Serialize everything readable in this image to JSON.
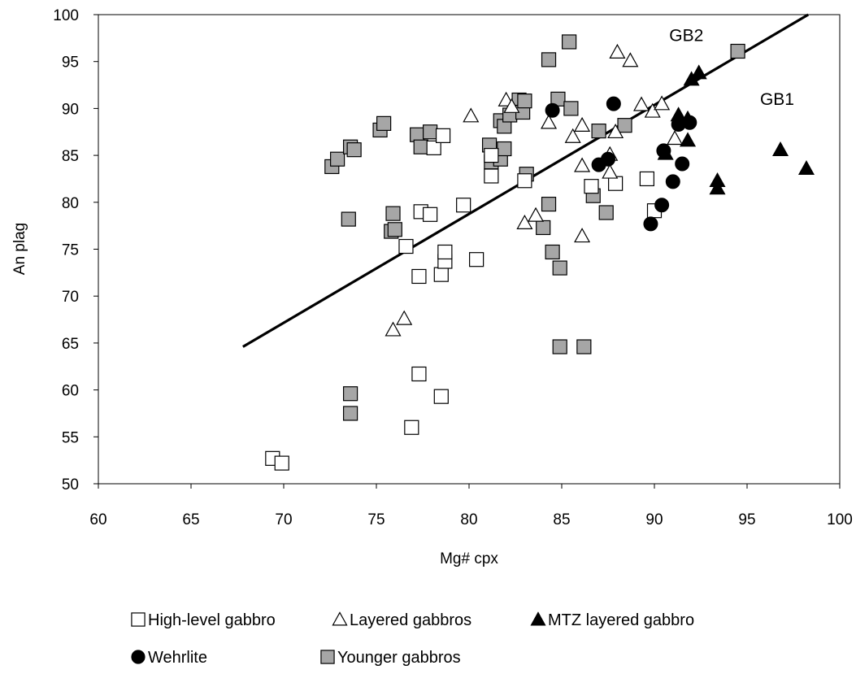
{
  "chart_data": {
    "type": "scatter",
    "xlabel": "Mg# cpx",
    "ylabel": "An plag",
    "xlim": [
      60,
      100
    ],
    "ylim": [
      50,
      100
    ],
    "xticks": [
      "60",
      "65",
      "70",
      "75",
      "80",
      "85",
      "90",
      "95",
      "100"
    ],
    "yticks": [
      "50",
      "55",
      "60",
      "65",
      "70",
      "75",
      "80",
      "85",
      "90",
      "95",
      "100"
    ],
    "grid": false,
    "legend_position": "bottom",
    "annotations": [
      {
        "text": "GB2",
        "x": 90.8,
        "y": 97.2
      },
      {
        "text": "GB1",
        "x": 95.7,
        "y": 90.4
      }
    ],
    "trend_line": {
      "x": [
        67.8,
        98.3
      ],
      "y": [
        64.6,
        100
      ]
    },
    "series": [
      {
        "name": "High-level gabbro",
        "marker": "square",
        "fill": "#ffffff",
        "stroke": "#000000",
        "points": [
          [
            69.4,
            52.7
          ],
          [
            69.9,
            52.2
          ],
          [
            76.9,
            56.0
          ],
          [
            77.3,
            61.7
          ],
          [
            78.5,
            59.3
          ],
          [
            76.6,
            75.3
          ],
          [
            77.3,
            72.1
          ],
          [
            78.5,
            72.3
          ],
          [
            78.7,
            73.7
          ],
          [
            78.7,
            74.7
          ],
          [
            77.4,
            79.0
          ],
          [
            77.9,
            78.7
          ],
          [
            79.7,
            79.7
          ],
          [
            80.4,
            73.9
          ],
          [
            81.2,
            82.8
          ],
          [
            81.2,
            85.0
          ],
          [
            78.1,
            85.8
          ],
          [
            78.6,
            87.1
          ],
          [
            83.0,
            82.3
          ],
          [
            86.6,
            81.7
          ],
          [
            87.9,
            82.0
          ],
          [
            89.6,
            82.5
          ],
          [
            90.0,
            79.1
          ]
        ]
      },
      {
        "name": "Layered gabbros",
        "marker": "triangle",
        "fill": "#ffffff",
        "stroke": "#000000",
        "points": [
          [
            75.9,
            66.4
          ],
          [
            76.5,
            67.6
          ],
          [
            80.1,
            89.2
          ],
          [
            82.0,
            90.9
          ],
          [
            82.3,
            90.2
          ],
          [
            84.3,
            88.5
          ],
          [
            83.0,
            77.8
          ],
          [
            83.6,
            78.6
          ],
          [
            85.6,
            87.0
          ],
          [
            86.1,
            88.2
          ],
          [
            86.1,
            83.9
          ],
          [
            86.1,
            76.4
          ],
          [
            87.6,
            85.1
          ],
          [
            87.6,
            83.2
          ],
          [
            87.9,
            87.5
          ],
          [
            88.0,
            96.0
          ],
          [
            88.7,
            95.1
          ],
          [
            89.3,
            90.4
          ],
          [
            89.9,
            89.7
          ],
          [
            90.4,
            90.5
          ],
          [
            91.1,
            86.8
          ]
        ]
      },
      {
        "name": "MTZ layered gabbro",
        "marker": "triangle",
        "fill": "#000000",
        "stroke": "#000000",
        "points": [
          [
            90.6,
            85.2
          ],
          [
            91.3,
            89.3
          ],
          [
            91.8,
            88.9
          ],
          [
            91.8,
            86.6
          ],
          [
            92.0,
            93.1
          ],
          [
            92.4,
            93.8
          ],
          [
            93.4,
            82.3
          ],
          [
            93.4,
            81.5
          ],
          [
            96.8,
            85.6
          ],
          [
            98.2,
            83.6
          ]
        ]
      },
      {
        "name": "Wehrlite",
        "marker": "circle",
        "fill": "#000000",
        "stroke": "#000000",
        "points": [
          [
            84.5,
            89.8
          ],
          [
            87.0,
            84.0
          ],
          [
            87.5,
            84.6
          ],
          [
            87.8,
            90.5
          ],
          [
            89.8,
            77.7
          ],
          [
            90.4,
            79.7
          ],
          [
            90.5,
            85.5
          ],
          [
            91.0,
            82.2
          ],
          [
            91.3,
            88.3
          ],
          [
            91.5,
            84.1
          ],
          [
            91.9,
            88.5
          ]
        ]
      },
      {
        "name": "Younger gabbros",
        "marker": "square",
        "fill": "#a6a6a6",
        "stroke": "#000000",
        "points": [
          [
            72.6,
            83.8
          ],
          [
            72.9,
            84.6
          ],
          [
            73.6,
            85.9
          ],
          [
            73.8,
            85.6
          ],
          [
            73.5,
            78.2
          ],
          [
            73.6,
            59.6
          ],
          [
            73.6,
            57.5
          ],
          [
            75.2,
            87.7
          ],
          [
            75.4,
            88.4
          ],
          [
            75.8,
            76.9
          ],
          [
            75.9,
            78.8
          ],
          [
            76.0,
            77.1
          ],
          [
            77.2,
            87.2
          ],
          [
            77.4,
            85.9
          ],
          [
            77.9,
            87.5
          ],
          [
            81.1,
            86.1
          ],
          [
            81.2,
            84.3
          ],
          [
            81.7,
            84.6
          ],
          [
            81.7,
            88.7
          ],
          [
            81.9,
            85.7
          ],
          [
            81.9,
            88.1
          ],
          [
            82.2,
            89.3
          ],
          [
            82.7,
            90.9
          ],
          [
            82.9,
            89.6
          ],
          [
            83.0,
            90.8
          ],
          [
            83.1,
            83.0
          ],
          [
            84.3,
            79.8
          ],
          [
            84.5,
            74.7
          ],
          [
            84.3,
            95.2
          ],
          [
            84.8,
            91.0
          ],
          [
            84.9,
            73.0
          ],
          [
            84.9,
            64.6
          ],
          [
            86.2,
            64.6
          ],
          [
            84.0,
            77.3
          ],
          [
            85.4,
            97.1
          ],
          [
            85.5,
            90.0
          ],
          [
            86.7,
            80.7
          ],
          [
            87.0,
            87.6
          ],
          [
            87.4,
            78.9
          ],
          [
            88.4,
            88.2
          ],
          [
            94.5,
            96.1
          ]
        ]
      }
    ]
  }
}
